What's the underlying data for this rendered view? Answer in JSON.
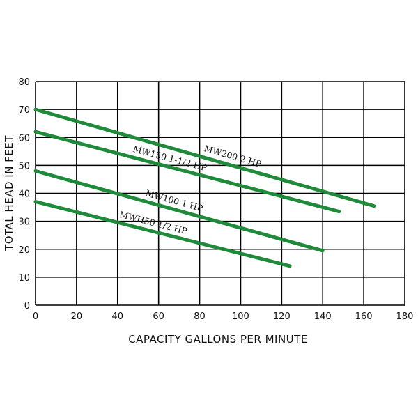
{
  "chart_data": {
    "type": "line",
    "xlabel": "CAPACITY GALLONS PER MINUTE",
    "ylabel": "TOTAL HEAD IN FEET",
    "xlim": [
      0,
      180
    ],
    "ylim": [
      0,
      80
    ],
    "xticks": [
      "0",
      "20",
      "40",
      "60",
      "80",
      "100",
      "120",
      "140",
      "160",
      "180"
    ],
    "yticks": [
      "0",
      "10",
      "20",
      "30",
      "40",
      "50",
      "60",
      "70",
      "80"
    ],
    "grid": true,
    "line_color": "#1f8a3a",
    "series": [
      {
        "name": "MW200 2 HP",
        "x": [
          0,
          165
        ],
        "y": [
          70,
          35.5
        ]
      },
      {
        "name": "MW150 1-1/2 HP",
        "x": [
          0,
          148
        ],
        "y": [
          62,
          33.5
        ]
      },
      {
        "name": "MW100 1 HP",
        "x": [
          0,
          140
        ],
        "y": [
          48,
          19.5
        ]
      },
      {
        "name": "MWH50 1/2 HP",
        "x": [
          0,
          124
        ],
        "y": [
          37,
          14
        ]
      }
    ]
  }
}
